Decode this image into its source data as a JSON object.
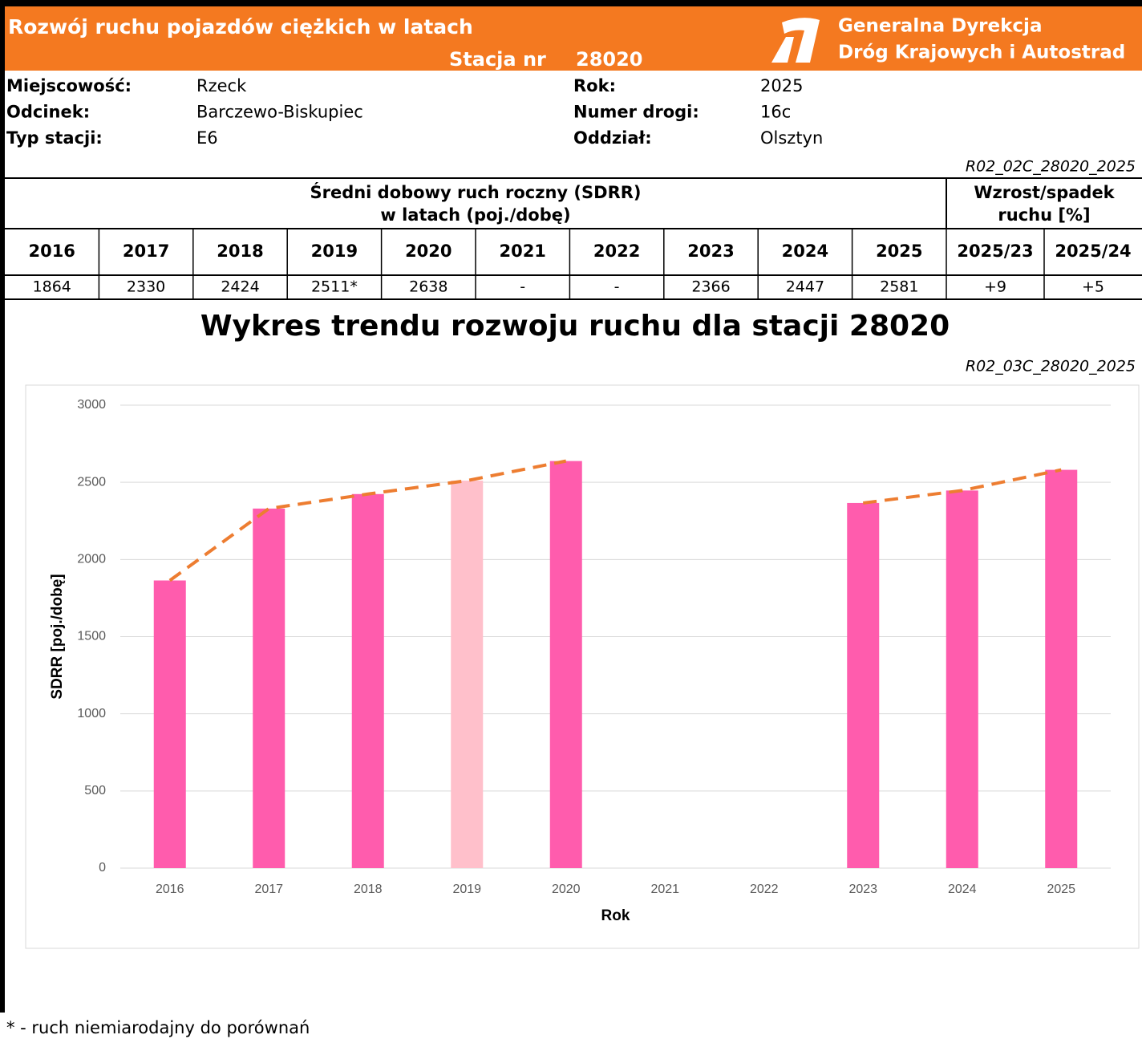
{
  "header": {
    "title": "Rozwój ruchu pojazdów ciężkich w latach",
    "station_label": "Stacja nr",
    "station_number": "28020",
    "org_line1": "Generalna Dyrekcja",
    "org_line2": "Dróg Krajowych i Autostrad"
  },
  "info": [
    {
      "label": "Miejscowość:",
      "value": "Rzeck"
    },
    {
      "label": "Rok:",
      "value": "2025"
    },
    {
      "label": "Odcinek:",
      "value": "Barczewo-Biskupiec"
    },
    {
      "label": "Numer drogi:",
      "value": "16c"
    },
    {
      "label": "Typ stacji:",
      "value": "E6"
    },
    {
      "label": "Oddział:",
      "value": "Olsztyn"
    }
  ],
  "table": {
    "code": "R02_02C_28020_2025",
    "header_main": [
      "Średni dobowy ruch roczny (SDRR)",
      "w latach (poj./dobę)"
    ],
    "header_change": [
      "Wzrost/spadek",
      "ruchu [%]"
    ],
    "columns": [
      "2016",
      "2017",
      "2018",
      "2019",
      "2020",
      "2021",
      "2022",
      "2023",
      "2024",
      "2025",
      "2025/23",
      "2025/24"
    ],
    "values": [
      "1864",
      "2330",
      "2424",
      "2511*",
      "2638",
      "-",
      "-",
      "2366",
      "2447",
      "2581",
      "+9",
      "+5"
    ]
  },
  "chart_data": {
    "type": "bar",
    "title": "Wykres trendu rozwoju ruchu dla stacji 28020",
    "code": "R02_03C_28020_2025",
    "categories": [
      "2016",
      "2017",
      "2018",
      "2019",
      "2020",
      "2021",
      "2022",
      "2023",
      "2024",
      "2025"
    ],
    "series": [
      {
        "type": "bar",
        "colors": [
          "#ff5cad",
          "#ff5cad",
          "#ff5cad",
          "#ffc0cb",
          "#ff5cad",
          "#ff5cad",
          "#ff5cad",
          "#ff5cad",
          "#ff5cad",
          "#ff5cad"
        ],
        "values": [
          1864,
          2330,
          2424,
          2511,
          2638,
          null,
          null,
          2366,
          2447,
          2581
        ]
      },
      {
        "type": "line",
        "color": "#ed7d31",
        "dashed": true,
        "values": [
          1864,
          2330,
          2424,
          2511,
          2638,
          null,
          null,
          2366,
          2447,
          2581
        ]
      }
    ],
    "ylim": [
      0,
      3000
    ],
    "yticks": [
      0,
      500,
      1000,
      1500,
      2000,
      2500,
      3000
    ],
    "grid": true,
    "xlabel": "Rok",
    "ylabel": "SDRR [poj./dobę]"
  },
  "footnote": "* - ruch niemiarodajny do porównań"
}
